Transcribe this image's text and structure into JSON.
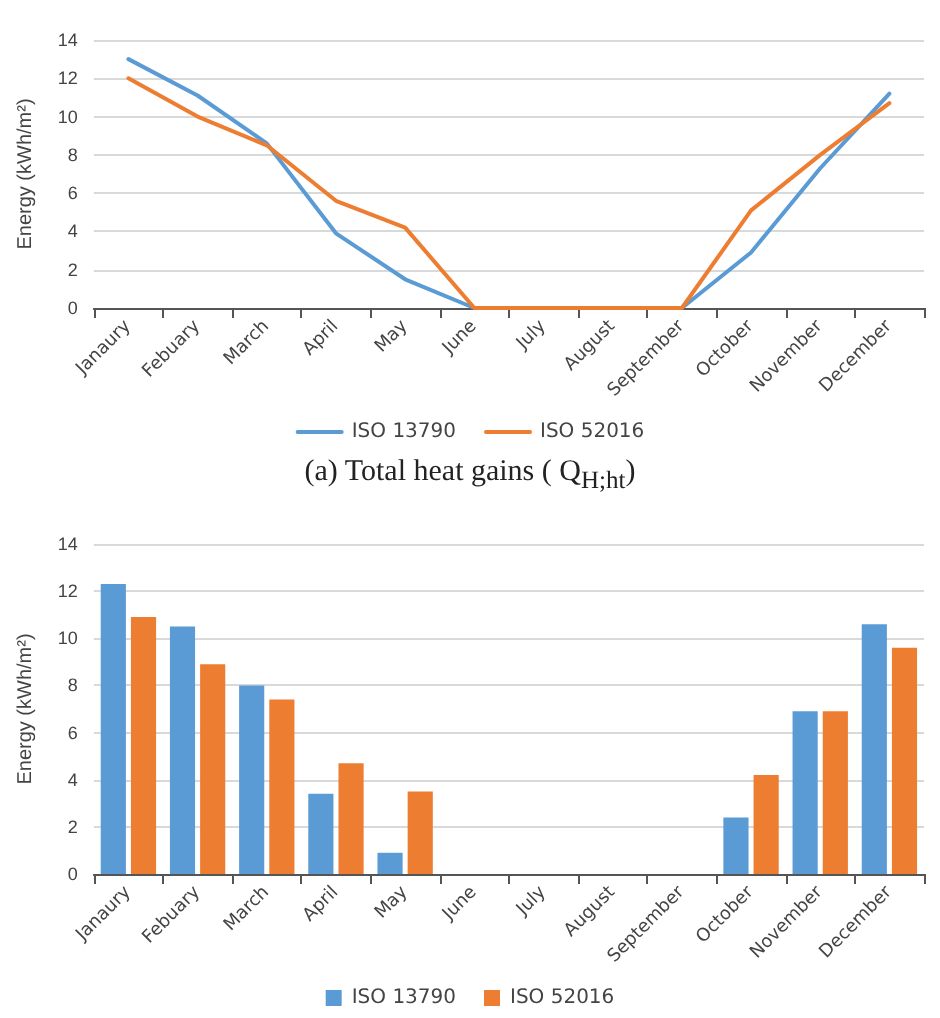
{
  "chart_data": [
    {
      "type": "line",
      "ylabel": "Energy (kWh/m²)",
      "categories": [
        "Janaury",
        "Febuary",
        "March",
        "April",
        "May",
        "June",
        "July",
        "August",
        "September",
        "October",
        "November",
        "December"
      ],
      "series": [
        {
          "name": "ISO 13790",
          "color": "#5b9bd5",
          "values": [
            13,
            11.1,
            8.6,
            3.9,
            1.5,
            0,
            0,
            0,
            0,
            2.9,
            7.3,
            11.2
          ]
        },
        {
          "name": "ISO 52016",
          "color": "#ed7d31",
          "values": [
            12,
            10,
            8.5,
            5.6,
            4.2,
            0,
            0,
            0,
            0,
            5.1,
            8,
            10.7
          ]
        }
      ],
      "ylim": [
        0,
        14
      ],
      "yticks": [
        0,
        2,
        4,
        6,
        8,
        10,
        12,
        14
      ],
      "grid": "y",
      "legend": "bottom",
      "marker": "none",
      "line_style": "solid",
      "annotations": [
        "(a) Total heat gains ( Q$_{H;ht}$)"
      ]
    },
    {
      "type": "bar",
      "ylabel": "Energy (kWh/m²)",
      "categories": [
        "Janaury",
        "Febuary",
        "March",
        "April",
        "May",
        "June",
        "July",
        "August",
        "September",
        "October",
        "November",
        "December"
      ],
      "series": [
        {
          "name": "ISO 13790",
          "color": "#5b9bd5",
          "values": [
            12.3,
            10.5,
            8,
            3.4,
            0.9,
            0,
            0,
            0,
            0,
            2.4,
            6.9,
            10.6
          ]
        },
        {
          "name": "ISO 52016",
          "color": "#ed7d31",
          "values": [
            10.9,
            8.9,
            7.4,
            4.7,
            3.5,
            0,
            0,
            0,
            0,
            4.2,
            6.9,
            9.6
          ]
        }
      ],
      "ylim": [
        0,
        14
      ],
      "yticks": [
        0,
        2,
        4,
        6,
        8,
        10,
        12,
        14
      ],
      "grid": "y",
      "legend": "bottom"
    }
  ]
}
